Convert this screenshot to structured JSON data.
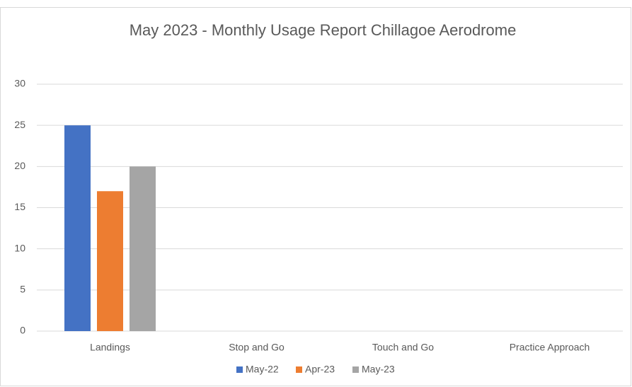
{
  "chart_data": {
    "type": "bar",
    "title": "May 2023 - Monthly Usage Report Chillagoe Aerodrome",
    "categories": [
      "Landings",
      "Stop and Go",
      "Touch and Go",
      "Practice Approach"
    ],
    "series": [
      {
        "name": "May-22",
        "color": "#4472c4",
        "values": [
          25,
          0,
          0,
          0
        ]
      },
      {
        "name": "Apr-23",
        "color": "#ed7d31",
        "values": [
          17,
          0,
          0,
          0
        ]
      },
      {
        "name": "May-23",
        "color": "#a5a5a5",
        "values": [
          20,
          0,
          0,
          0
        ]
      }
    ],
    "ylim": [
      0,
      30
    ],
    "yticks": [
      0,
      5,
      10,
      15,
      20,
      25,
      30
    ],
    "grid": true,
    "legend": "bottom"
  }
}
